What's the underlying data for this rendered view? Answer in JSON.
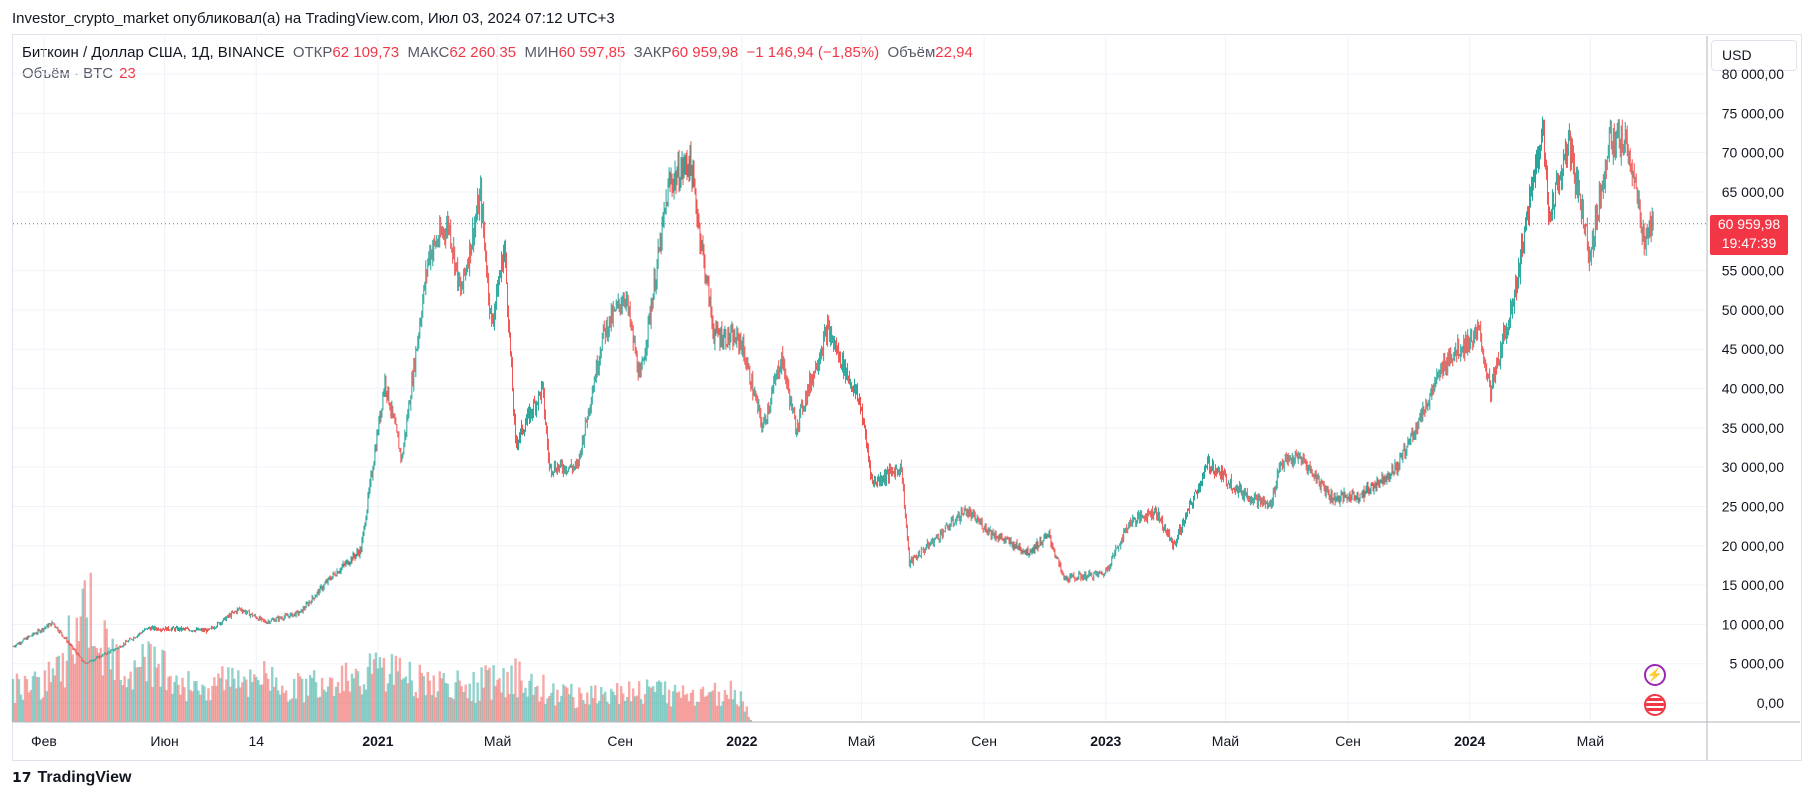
{
  "header": {
    "attribution": "Investor_crypto_market опубликовал(а) на TradingView.com, Июл 03, 2024 07:12 UTC+3"
  },
  "legend": {
    "symbol": "Биткоин / Доллар США, 1Д, BINANCE",
    "open_label": "ОТКР",
    "open": "62 109,73",
    "high_label": "МАКС",
    "high": "62 260,35",
    "low_label": "МИН",
    "low": "60 597,85",
    "close_label": "ЗАКР",
    "close": "60 959,98",
    "change": "−1 146,94 (−1,85%)",
    "volume_label": "Объём",
    "volume": "22,94",
    "volume_indicator_label": "Объём · BTC",
    "volume_indicator_value": "23"
  },
  "currency": "USD",
  "price_badge": {
    "price": "60 959,98",
    "countdown": "19:47:39"
  },
  "footer": {
    "brand": "TradingView"
  },
  "colors": {
    "up": "#26a69a",
    "down": "#ef5350",
    "price_line": "#f23645",
    "grid": "#f0f3fa"
  },
  "icons": {
    "brand": "tradingview-logo-icon",
    "event1": "lightning-icon",
    "event2": "us-flag-icon"
  },
  "chart_data": {
    "type": "line",
    "title": "Биткоин / Доллар США, 1Д, BINANCE",
    "ylim": [
      -1000,
      82000
    ],
    "y_ticks": [
      {
        "value": 80000,
        "label": "80 000,00"
      },
      {
        "value": 75000,
        "label": "75 000,00"
      },
      {
        "value": 70000,
        "label": "70 000,00"
      },
      {
        "value": 65000,
        "label": "65 000,00"
      },
      {
        "value": 55000,
        "label": "55 000,00"
      },
      {
        "value": 50000,
        "label": "50 000,00"
      },
      {
        "value": 45000,
        "label": "45 000,00"
      },
      {
        "value": 40000,
        "label": "40 000,00"
      },
      {
        "value": 35000,
        "label": "35 000,00"
      },
      {
        "value": 30000,
        "label": "30 000,00"
      },
      {
        "value": 25000,
        "label": "25 000,00"
      },
      {
        "value": 20000,
        "label": "20 000,00"
      },
      {
        "value": 15000,
        "label": "15 000,00"
      },
      {
        "value": 10000,
        "label": "10 000,00"
      },
      {
        "value": 5000,
        "label": "5 000,00"
      },
      {
        "value": 0,
        "label": "0,00"
      }
    ],
    "x_ticks": [
      {
        "date": "2020-02-01",
        "label": "Фев",
        "bold": false
      },
      {
        "date": "2020-06-01",
        "label": "Июн",
        "bold": false
      },
      {
        "date": "2020-09-01",
        "label": "14",
        "bold": false
      },
      {
        "date": "2021-01-01",
        "label": "2021",
        "bold": true
      },
      {
        "date": "2021-05-01",
        "label": "Май",
        "bold": false
      },
      {
        "date": "2021-09-01",
        "label": "Сен",
        "bold": false
      },
      {
        "date": "2022-01-01",
        "label": "2022",
        "bold": true
      },
      {
        "date": "2022-05-01",
        "label": "Май",
        "bold": false
      },
      {
        "date": "2022-09-01",
        "label": "Сен",
        "bold": false
      },
      {
        "date": "2023-01-01",
        "label": "2023",
        "bold": true
      },
      {
        "date": "2023-05-01",
        "label": "Май",
        "bold": false
      },
      {
        "date": "2023-09-01",
        "label": "Сен",
        "bold": false
      },
      {
        "date": "2024-01-01",
        "label": "2024",
        "bold": true
      },
      {
        "date": "2024-05-01",
        "label": "Май",
        "bold": false
      }
    ],
    "xlim": [
      "2020-01-01",
      "2024-08-25"
    ],
    "last_price": 60959.98,
    "series": [
      {
        "points": [
          [
            "2020-01-01",
            7200
          ],
          [
            "2020-02-10",
            10200
          ],
          [
            "2020-03-13",
            5000
          ],
          [
            "2020-04-15",
            7000
          ],
          [
            "2020-05-15",
            9500
          ],
          [
            "2020-06-15",
            9400
          ],
          [
            "2020-07-15",
            9200
          ],
          [
            "2020-08-15",
            12000
          ],
          [
            "2020-09-10",
            10300
          ],
          [
            "2020-10-15",
            11500
          ],
          [
            "2020-11-15",
            16000
          ],
          [
            "2020-12-15",
            19500
          ],
          [
            "2021-01-08",
            41000
          ],
          [
            "2021-01-25",
            31000
          ],
          [
            "2021-02-21",
            57000
          ],
          [
            "2021-03-13",
            61000
          ],
          [
            "2021-03-25",
            52000
          ],
          [
            "2021-04-14",
            64500
          ],
          [
            "2021-04-25",
            48000
          ],
          [
            "2021-05-08",
            58000
          ],
          [
            "2021-05-19",
            33000
          ],
          [
            "2021-06-15",
            40000
          ],
          [
            "2021-06-22",
            30000
          ],
          [
            "2021-07-20",
            30000
          ],
          [
            "2021-08-15",
            47000
          ],
          [
            "2021-09-06",
            52000
          ],
          [
            "2021-09-21",
            41000
          ],
          [
            "2021-10-20",
            66000
          ],
          [
            "2021-11-10",
            69000
          ],
          [
            "2021-12-04",
            47000
          ],
          [
            "2021-12-31",
            46000
          ],
          [
            "2022-01-22",
            35000
          ],
          [
            "2022-02-10",
            44000
          ],
          [
            "2022-02-24",
            35000
          ],
          [
            "2022-03-28",
            47500
          ],
          [
            "2022-04-30",
            38000
          ],
          [
            "2022-05-12",
            28000
          ],
          [
            "2022-06-10",
            30000
          ],
          [
            "2022-06-18",
            17800
          ],
          [
            "2022-07-15",
            21000
          ],
          [
            "2022-08-13",
            24500
          ],
          [
            "2022-09-10",
            21500
          ],
          [
            "2022-10-15",
            19200
          ],
          [
            "2022-11-05",
            21300
          ],
          [
            "2022-11-20",
            15800
          ],
          [
            "2022-12-31",
            16500
          ],
          [
            "2023-01-25",
            23000
          ],
          [
            "2023-02-20",
            24500
          ],
          [
            "2023-03-10",
            20000
          ],
          [
            "2023-04-14",
            30500
          ],
          [
            "2023-05-15",
            27000
          ],
          [
            "2023-06-15",
            25000
          ],
          [
            "2023-06-25",
            30500
          ],
          [
            "2023-07-15",
            31200
          ],
          [
            "2023-08-17",
            26000
          ],
          [
            "2023-09-15",
            26500
          ],
          [
            "2023-10-20",
            30000
          ],
          [
            "2023-11-15",
            37000
          ],
          [
            "2023-12-10",
            44000
          ],
          [
            "2024-01-11",
            47000
          ],
          [
            "2024-01-22",
            39500
          ],
          [
            "2024-02-15",
            52000
          ],
          [
            "2024-03-14",
            73500
          ],
          [
            "2024-03-20",
            62000
          ],
          [
            "2024-04-10",
            71000
          ],
          [
            "2024-05-01",
            57000
          ],
          [
            "2024-05-20",
            71500
          ],
          [
            "2024-06-07",
            71000
          ],
          [
            "2024-06-24",
            59000
          ],
          [
            "2024-07-03",
            60960
          ]
        ]
      }
    ],
    "volume_series": [
      [
        "2020-01-15",
        6000
      ],
      [
        "2020-02-15",
        8000
      ],
      [
        "2020-03-13",
        19500
      ],
      [
        "2020-04-15",
        9000
      ],
      [
        "2020-05-15",
        11000
      ],
      [
        "2020-06-15",
        7000
      ],
      [
        "2020-07-15",
        6000
      ],
      [
        "2020-08-15",
        8000
      ],
      [
        "2020-09-15",
        7000
      ],
      [
        "2020-10-15",
        6000
      ],
      [
        "2020-11-15",
        7000
      ],
      [
        "2020-12-15",
        8000
      ],
      [
        "2021-01-15",
        8500
      ],
      [
        "2021-02-15",
        7000
      ],
      [
        "2021-03-15",
        6000
      ],
      [
        "2021-04-15",
        6500
      ],
      [
        "2021-05-19",
        8000
      ],
      [
        "2021-06-15",
        6000
      ],
      [
        "2021-07-15",
        4500
      ],
      [
        "2021-08-15",
        5000
      ],
      [
        "2021-09-15",
        5500
      ],
      [
        "2021-10-15",
        5000
      ],
      [
        "2021-11-15",
        4500
      ],
      [
        "2021-12-15",
        5500
      ],
      [
        "2022-01-01",
        4000
      ],
      [
        "2022-01-10",
        300
      ]
    ]
  }
}
